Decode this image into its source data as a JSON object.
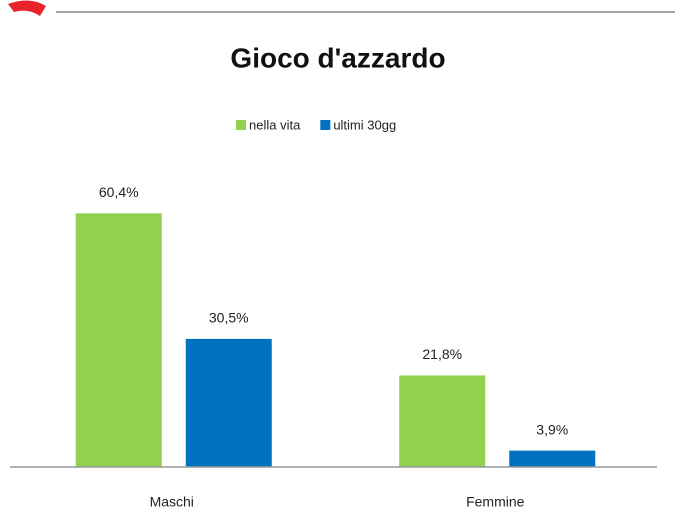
{
  "chart_data": {
    "type": "bar",
    "title": "Gioco d'azzardo",
    "categories": [
      "Maschi",
      "Femmine"
    ],
    "series": [
      {
        "name": "nella vita",
        "color": "#92d050",
        "values": [
          60.4,
          21.8
        ],
        "value_labels": [
          "60,4%",
          "21,8%"
        ]
      },
      {
        "name": "ultimi 30gg",
        "color": "#0070c0",
        "values": [
          30.5,
          3.9
        ],
        "value_labels": [
          "30,5%",
          "3,9%"
        ]
      }
    ],
    "legend": "top"
  }
}
